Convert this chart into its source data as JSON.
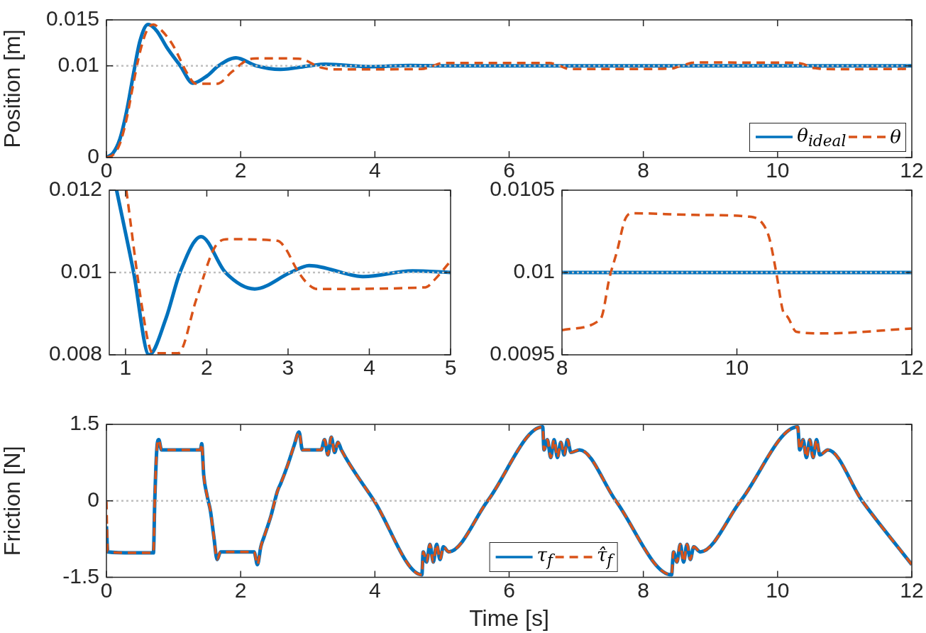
{
  "chart_data": [
    {
      "type": "line",
      "ylabel": "Position [m]",
      "xlim": [
        0,
        12
      ],
      "xticks": [
        0,
        2,
        4,
        6,
        8,
        10,
        12
      ],
      "ylim": [
        0,
        0.015
      ],
      "yticks": [
        0,
        0.01,
        0.015
      ],
      "legend": "bottom right",
      "ref_lines": [
        {
          "axis": "y",
          "value": 0.01,
          "color": "#bfbfbf",
          "line_style": "dotted"
        }
      ],
      "series": [
        {
          "name": "θ$_{ideal}$",
          "color": "#0072bd",
          "line_style": "solid",
          "x": [
            0,
            0.1,
            0.2,
            0.3,
            0.4,
            0.5,
            0.62,
            0.75,
            0.9,
            1.1,
            1.29,
            1.5,
            1.67,
            1.93,
            2.23,
            2.59,
            3.03,
            3.26,
            3.93,
            4.53,
            5,
            12
          ],
          "values": [
            0,
            0.0005,
            0.002,
            0.005,
            0.009,
            0.0127,
            0.0145,
            0.0138,
            0.012,
            0.01,
            0.0081,
            0.0089,
            0.01,
            0.01087,
            0.01,
            0.0096,
            0.01,
            0.01017,
            0.0099,
            0.01004,
            0.01,
            0.01
          ]
        },
        {
          "name": "θ",
          "color": "#d95319",
          "line_style": "dashed",
          "x": [
            0,
            0.1,
            0.2,
            0.3,
            0.4,
            0.5,
            0.6,
            0.7,
            0.8,
            0.9,
            1.01,
            1.2,
            1.31,
            1.35,
            1.65,
            1.87,
            2.1,
            2.27,
            2.87,
            2.97,
            3.1,
            3.23,
            3.36,
            4.69,
            4.82,
            5,
            5.2,
            6.6,
            6.75,
            6.9,
            8,
            8.4,
            8.46,
            8.54,
            8.63,
            8.72,
            8.8,
            9.5,
            10.12,
            10.29,
            10.37,
            10.45,
            10.53,
            10.58,
            10.68,
            11,
            12
          ],
          "values": [
            0,
            0.0003,
            0.0015,
            0.0042,
            0.008,
            0.0115,
            0.0138,
            0.0145,
            0.014,
            0.0132,
            0.012,
            0.0092,
            0.0081,
            0.00804,
            0.00804,
            0.00934,
            0.01062,
            0.01081,
            0.01077,
            0.01058,
            0.0101,
            0.00975,
            0.0096,
            0.00964,
            0.00986,
            0.01028,
            0.0103,
            0.0103,
            0.01,
            0.00965,
            0.00965,
            0.0097,
            0.00974,
            0.00996,
            0.01013,
            0.01032,
            0.01036,
            0.01035,
            0.01034,
            0.0103,
            0.01021,
            0.01,
            0.00976,
            0.00973,
            0.00964,
            0.00963,
            0.00966
          ]
        }
      ]
    },
    {
      "type": "line",
      "xlim": [
        0.8,
        5
      ],
      "xticks": [
        1,
        2,
        3,
        4,
        5
      ],
      "ylim": [
        0.008,
        0.012
      ],
      "yticks": [
        0.008,
        0.01,
        0.012
      ],
      "ref_lines": [
        {
          "axis": "y",
          "value": 0.01,
          "color": "#bfbfbf",
          "line_style": "dotted"
        }
      ],
      "series": [
        {
          "color": "#0072bd",
          "line_style": "solid",
          "x": [
            0.89,
            1.1,
            1.29,
            1.5,
            1.67,
            1.93,
            2.23,
            2.59,
            3.03,
            3.26,
            3.93,
            4.53,
            5
          ],
          "values": [
            0.012,
            0.01,
            0.008,
            0.0089,
            0.01,
            0.01087,
            0.01,
            0.0096,
            0.01,
            0.01017,
            0.0099,
            0.01004,
            0.01
          ]
        },
        {
          "color": "#d95319",
          "line_style": "dashed",
          "x": [
            1.01,
            1.2,
            1.31,
            1.35,
            1.65,
            1.87,
            2.1,
            2.27,
            2.87,
            2.97,
            3.1,
            3.23,
            3.36,
            4.69,
            4.82,
            5
          ],
          "values": [
            0.012,
            0.0092,
            0.0081,
            0.00804,
            0.00804,
            0.00934,
            0.01062,
            0.01081,
            0.01077,
            0.01058,
            0.0101,
            0.00975,
            0.0096,
            0.00964,
            0.00986,
            0.01028
          ]
        }
      ]
    },
    {
      "type": "line",
      "xlim": [
        8,
        12
      ],
      "xticks": [
        8,
        10,
        12
      ],
      "ylim": [
        0.0095,
        0.0105
      ],
      "yticks": [
        0.0095,
        0.01,
        0.0105
      ],
      "ref_lines": [
        {
          "axis": "y",
          "value": 0.01,
          "color": "#bfbfbf",
          "line_style": "dotted"
        }
      ],
      "series": [
        {
          "color": "#0072bd",
          "line_style": "solid",
          "x": [
            8,
            12
          ],
          "values": [
            0.01,
            0.01
          ]
        },
        {
          "color": "#d95319",
          "line_style": "dashed",
          "x": [
            8,
            8.4,
            8.46,
            8.54,
            8.63,
            8.72,
            8.8,
            9.5,
            10.12,
            10.29,
            10.37,
            10.45,
            10.53,
            10.58,
            10.68,
            11,
            12
          ],
          "values": [
            0.00965,
            0.0097,
            0.00974,
            0.00996,
            0.01013,
            0.01032,
            0.01036,
            0.01035,
            0.01034,
            0.0103,
            0.01021,
            0.01,
            0.00976,
            0.00973,
            0.00964,
            0.00963,
            0.00966
          ]
        }
      ]
    },
    {
      "type": "line",
      "xlabel": "Time [s]",
      "ylabel": "Friction [N]",
      "xlim": [
        0,
        12
      ],
      "xticks": [
        0,
        2,
        4,
        6,
        8,
        10,
        12
      ],
      "ylim": [
        -1.5,
        1.5
      ],
      "yticks": [
        -1.5,
        0,
        1.5
      ],
      "legend": "bottom",
      "ref_lines": [
        {
          "axis": "y",
          "value": 0,
          "color": "#bfbfbf",
          "line_style": "dotted"
        }
      ],
      "series": [
        {
          "name": "τ$_{f}$",
          "color": "#0072bd",
          "line_style": "solid",
          "x": [
            0,
            0.02,
            0.4,
            0.7,
            0.72,
            0.75,
            0.78,
            0.82,
            1.4,
            1.42,
            1.45,
            1.5,
            1.55,
            1.6,
            1.65,
            1.7,
            2.2,
            2.25,
            2.3,
            2.35,
            2.45,
            2.55,
            2.6,
            2.7,
            2.8,
            2.87,
            2.92,
            3.2,
            3.25,
            3.3,
            3.35,
            3.4,
            3.45,
            3.5,
            3.99,
            4.7,
            4.72,
            4.77,
            4.82,
            4.87,
            4.92,
            4.97,
            5.02,
            5.1,
            5.68,
            6.5,
            6.52,
            6.57,
            6.62,
            6.67,
            6.72,
            6.77,
            6.82,
            6.87,
            6.92,
            7.05,
            7.59,
            8.42,
            8.45,
            8.5,
            8.55,
            8.6,
            8.65,
            8.7,
            8.75,
            8.85,
            9.45,
            10.3,
            10.33,
            10.38,
            10.43,
            10.48,
            10.53,
            10.58,
            10.63,
            10.75,
            11.26,
            12
          ],
          "values": [
            -0.5,
            -1,
            -1.02,
            -1.02,
            0,
            1,
            1.2,
            1,
            1,
            1.12,
            0.5,
            0.1,
            -0.2,
            -0.7,
            -1.15,
            -1,
            -1,
            -1.25,
            -0.9,
            -0.7,
            -0.3,
            0.2,
            0.35,
            0.7,
            1.1,
            1.35,
            1,
            1,
            1.2,
            0.9,
            1.25,
            0.95,
            1.15,
            1,
            0,
            -1.45,
            -1,
            -1.2,
            -0.85,
            -1.2,
            -0.85,
            -1.15,
            -0.9,
            -1,
            0,
            1.45,
            1,
            1.2,
            0.85,
            1.2,
            0.85,
            1.15,
            0.9,
            1.2,
            0.95,
            1,
            0,
            -1.45,
            -1,
            -1.2,
            -0.85,
            -1.2,
            -0.85,
            -1.15,
            -0.9,
            -1,
            0,
            1.45,
            1,
            1.2,
            0.85,
            1.2,
            0.85,
            1.2,
            0.9,
            1,
            0,
            -1.25
          ]
        },
        {
          "name": "τ̂$_{f}$",
          "color": "#d95319",
          "line_style": "dashed",
          "x": [
            0,
            0.02,
            0.4,
            0.7,
            0.72,
            0.75,
            0.78,
            0.82,
            1.4,
            1.42,
            1.45,
            1.5,
            1.55,
            1.6,
            1.65,
            1.7,
            2.2,
            2.25,
            2.3,
            2.35,
            2.45,
            2.55,
            2.6,
            2.7,
            2.8,
            2.87,
            2.92,
            3.2,
            3.25,
            3.3,
            3.35,
            3.4,
            3.45,
            3.5,
            3.99,
            4.7,
            4.72,
            4.77,
            4.82,
            4.87,
            4.92,
            4.97,
            5.02,
            5.1,
            5.68,
            6.5,
            6.52,
            6.57,
            6.62,
            6.67,
            6.72,
            6.77,
            6.82,
            6.87,
            6.92,
            7.05,
            7.59,
            8.42,
            8.45,
            8.5,
            8.55,
            8.6,
            8.65,
            8.7,
            8.75,
            8.85,
            9.45,
            10.3,
            10.33,
            10.38,
            10.43,
            10.48,
            10.53,
            10.58,
            10.63,
            10.75,
            11.26,
            12
          ],
          "values": [
            0,
            -1,
            -1.02,
            -1.02,
            0,
            1,
            1.2,
            1,
            1,
            1.12,
            0.5,
            0.1,
            -0.2,
            -0.7,
            -1.15,
            -1,
            -1,
            -1.25,
            -0.9,
            -0.7,
            -0.3,
            0.2,
            0.35,
            0.7,
            1.1,
            1.35,
            1,
            1,
            1.2,
            0.9,
            1.25,
            0.95,
            1.15,
            1,
            0,
            -1.45,
            -1,
            -1.2,
            -0.85,
            -1.2,
            -0.85,
            -1.15,
            -0.9,
            -1,
            0,
            1.45,
            1,
            1.2,
            0.85,
            1.2,
            0.85,
            1.15,
            0.9,
            1.2,
            0.95,
            1,
            0,
            -1.45,
            -1,
            -1.2,
            -0.85,
            -1.2,
            -0.85,
            -1.15,
            -0.9,
            -1,
            0,
            1.45,
            1,
            1.2,
            0.85,
            1.2,
            0.85,
            1.2,
            0.9,
            1,
            0,
            -1.25
          ]
        }
      ]
    }
  ]
}
